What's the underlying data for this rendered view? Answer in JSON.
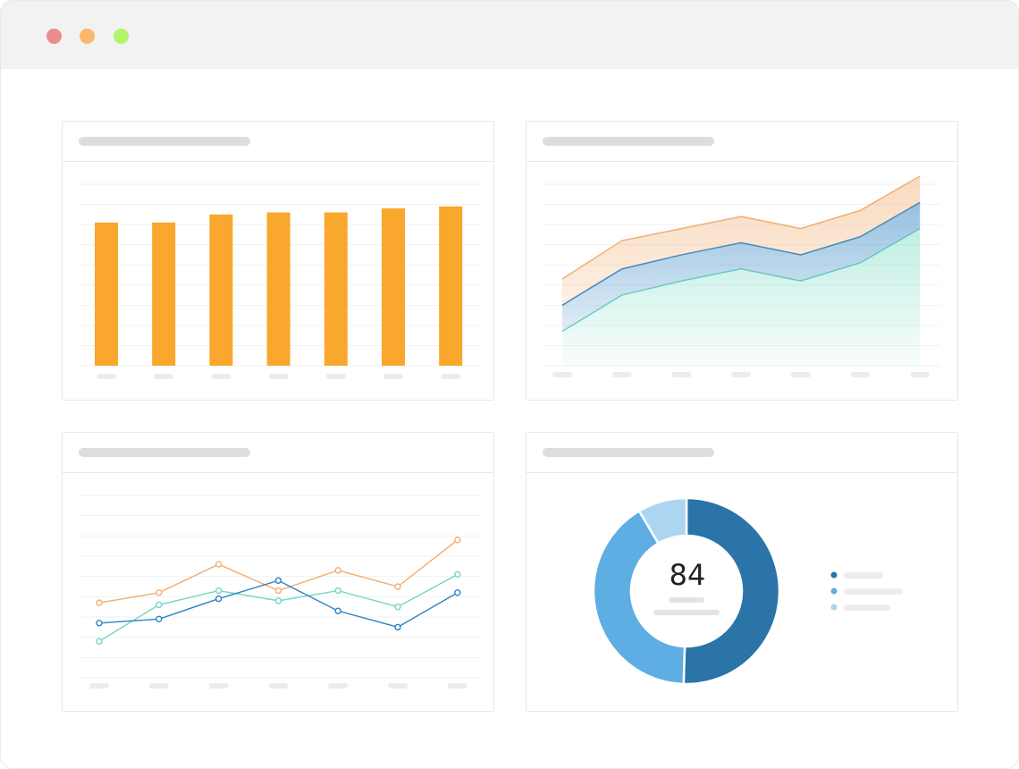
{
  "window": {
    "controls": [
      {
        "name": "close",
        "color": "#ec8d8d"
      },
      {
        "name": "minimize",
        "color": "#f9b86a"
      },
      {
        "name": "maximize",
        "color": "#b2f56a"
      }
    ]
  },
  "colors": {
    "bar": "#f9a72d",
    "orange": "#f2ae70",
    "blue": "#2d82c2",
    "teal": "#72d8c1",
    "donut_dark": "#2a74a8",
    "donut_mid": "#5eade3",
    "donut_light": "#acd5f2",
    "grid": "#f1f2f3",
    "pill": "#ececec",
    "title_pill": "#dcdddf"
  },
  "chart_data": [
    {
      "type": "bar",
      "title": "",
      "ylim": [
        0,
        9
      ],
      "gridlines": 9,
      "categories": [
        "",
        "",
        "",
        "",
        "",
        "",
        ""
      ],
      "values": [
        7.1,
        7.1,
        7.5,
        7.6,
        7.6,
        7.8,
        7.9
      ]
    },
    {
      "type": "area",
      "stacked": true,
      "title": "",
      "ylim": [
        0,
        9
      ],
      "gridlines": 9,
      "categories": [
        "",
        "",
        "",
        "",
        "",
        "",
        ""
      ],
      "series": [
        {
          "name": "teal",
          "values": [
            1.7,
            3.5,
            4.2,
            4.8,
            4.2,
            5.1,
            6.8
          ]
        },
        {
          "name": "blue",
          "values": [
            1.3,
            1.3,
            1.3,
            1.3,
            1.3,
            1.3,
            1.3
          ]
        },
        {
          "name": "orange",
          "values": [
            1.3,
            1.4,
            1.3,
            1.3,
            1.3,
            1.3,
            1.3
          ]
        }
      ]
    },
    {
      "type": "line",
      "title": "",
      "ylim": [
        0,
        9
      ],
      "gridlines": 9,
      "categories": [
        "",
        "",
        "",
        "",
        "",
        "",
        ""
      ],
      "series": [
        {
          "name": "orange",
          "values": [
            3.7,
            4.2,
            5.6,
            4.3,
            5.3,
            4.5,
            6.8
          ]
        },
        {
          "name": "teal",
          "values": [
            1.8,
            3.6,
            4.3,
            3.8,
            4.3,
            3.5,
            5.1
          ]
        },
        {
          "name": "blue",
          "values": [
            2.7,
            2.9,
            3.9,
            4.8,
            3.3,
            2.5,
            4.2
          ]
        }
      ]
    },
    {
      "type": "pie",
      "donut": true,
      "title": "",
      "center_value": "84",
      "slices": [
        {
          "name": "dark",
          "value": 50.5
        },
        {
          "name": "mid",
          "value": 41.0
        },
        {
          "name": "light",
          "value": 8.5
        }
      ]
    }
  ]
}
